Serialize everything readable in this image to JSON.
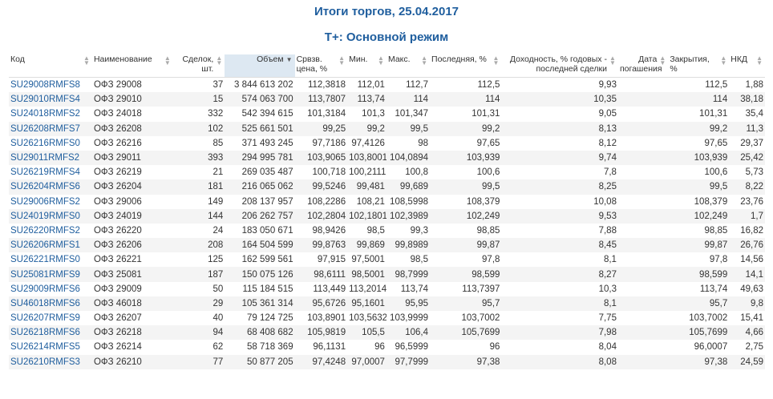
{
  "title": "Итоги торгов, 25.04.2017",
  "subtitle": "T+: Основной режим",
  "columns": [
    {
      "label": "Код",
      "align": "left"
    },
    {
      "label": "Наименование",
      "align": "left"
    },
    {
      "label": "Сделок, шт.",
      "align": "right"
    },
    {
      "label": "Объем",
      "align": "right"
    },
    {
      "label": "Срвзв. цена, %",
      "align": "left"
    },
    {
      "label": "Мин.",
      "align": "left"
    },
    {
      "label": "Макс.",
      "align": "left"
    },
    {
      "label": "Последняя, %",
      "align": "left"
    },
    {
      "label": "Доходность, % годовых - последней сделки",
      "align": "right"
    },
    {
      "label": "Дата погашения",
      "align": "right"
    },
    {
      "label": "Закрытия, %",
      "align": "left"
    },
    {
      "label": "НКД",
      "align": "left"
    }
  ],
  "sorted_column_index": 3,
  "rows": [
    [
      "SU29008RMFS8",
      "ОФЗ 29008",
      "37",
      "3 844 613 202",
      "112,3818",
      "112,01",
      "112,7",
      "112,5",
      "9,93",
      "",
      "112,5",
      "1,88"
    ],
    [
      "SU29010RMFS4",
      "ОФЗ 29010",
      "15",
      "574 063 700",
      "113,7807",
      "113,74",
      "114",
      "114",
      "10,35",
      "",
      "114",
      "38,18"
    ],
    [
      "SU24018RMFS2",
      "ОФЗ 24018",
      "332",
      "542 394 615",
      "101,3184",
      "101,3",
      "101,347",
      "101,31",
      "9,05",
      "",
      "101,31",
      "35,4"
    ],
    [
      "SU26208RMFS7",
      "ОФЗ 26208",
      "102",
      "525 661 501",
      "99,25",
      "99,2",
      "99,5",
      "99,2",
      "8,13",
      "",
      "99,2",
      "11,3"
    ],
    [
      "SU26216RMFS0",
      "ОФЗ 26216",
      "85",
      "371 493 245",
      "97,7186",
      "97,4126",
      "98",
      "97,65",
      "8,12",
      "",
      "97,65",
      "29,37"
    ],
    [
      "SU29011RMFS2",
      "ОФЗ 29011",
      "393",
      "294 995 781",
      "103,9065",
      "103,8001",
      "104,0894",
      "103,939",
      "9,74",
      "",
      "103,939",
      "25,42"
    ],
    [
      "SU26219RMFS4",
      "ОФЗ 26219",
      "21",
      "269 035 487",
      "100,718",
      "100,2111",
      "100,8",
      "100,6",
      "7,8",
      "",
      "100,6",
      "5,73"
    ],
    [
      "SU26204RMFS6",
      "ОФЗ 26204",
      "181",
      "216 065 062",
      "99,5246",
      "99,481",
      "99,689",
      "99,5",
      "8,25",
      "",
      "99,5",
      "8,22"
    ],
    [
      "SU29006RMFS2",
      "ОФЗ 29006",
      "149",
      "208 137 957",
      "108,2286",
      "108,21",
      "108,5998",
      "108,379",
      "10,08",
      "",
      "108,379",
      "23,76"
    ],
    [
      "SU24019RMFS0",
      "ОФЗ 24019",
      "144",
      "206 262 757",
      "102,2804",
      "102,1801",
      "102,3989",
      "102,249",
      "9,53",
      "",
      "102,249",
      "1,7"
    ],
    [
      "SU26220RMFS2",
      "ОФЗ 26220",
      "24",
      "183 050 671",
      "98,9426",
      "98,5",
      "99,3",
      "98,85",
      "7,88",
      "",
      "98,85",
      "16,82"
    ],
    [
      "SU26206RMFS1",
      "ОФЗ 26206",
      "208",
      "164 504 599",
      "99,8763",
      "99,869",
      "99,8989",
      "99,87",
      "8,45",
      "",
      "99,87",
      "26,76"
    ],
    [
      "SU26221RMFS0",
      "ОФЗ 26221",
      "125",
      "162 599 561",
      "97,915",
      "97,5001",
      "98,5",
      "97,8",
      "8,1",
      "",
      "97,8",
      "14,56"
    ],
    [
      "SU25081RMFS9",
      "ОФЗ 25081",
      "187",
      "150 075 126",
      "98,6111",
      "98,5001",
      "98,7999",
      "98,599",
      "8,27",
      "",
      "98,599",
      "14,1"
    ],
    [
      "SU29009RMFS6",
      "ОФЗ 29009",
      "50",
      "115 184 515",
      "113,449",
      "113,2014",
      "113,74",
      "113,7397",
      "10,3",
      "",
      "113,74",
      "49,63"
    ],
    [
      "SU46018RMFS6",
      "ОФЗ 46018",
      "29",
      "105 361 314",
      "95,6726",
      "95,1601",
      "95,95",
      "95,7",
      "8,1",
      "",
      "95,7",
      "9,8"
    ],
    [
      "SU26207RMFS9",
      "ОФЗ 26207",
      "40",
      "79 124 725",
      "103,8901",
      "103,5632",
      "103,9999",
      "103,7002",
      "7,75",
      "",
      "103,7002",
      "15,41"
    ],
    [
      "SU26218RMFS6",
      "ОФЗ 26218",
      "94",
      "68 408 682",
      "105,9819",
      "105,5",
      "106,4",
      "105,7699",
      "7,98",
      "",
      "105,7699",
      "4,66"
    ],
    [
      "SU26214RMFS5",
      "ОФЗ 26214",
      "62",
      "58 718 369",
      "96,1131",
      "96",
      "96,5999",
      "96",
      "8,04",
      "",
      "96,0007",
      "2,75"
    ],
    [
      "SU26210RMFS3",
      "ОФЗ 26210",
      "77",
      "50 877 205",
      "97,4248",
      "97,0007",
      "97,7999",
      "97,38",
      "8,08",
      "",
      "97,38",
      "24,59"
    ]
  ],
  "colors": {
    "accent": "#1f5e9e",
    "sorted_header_bg": "#dde8f2",
    "zebra": "#f4f4f4"
  },
  "icons": {
    "sort": "sort-arrows-icon",
    "sorted_desc": "sort-desc-icon"
  }
}
